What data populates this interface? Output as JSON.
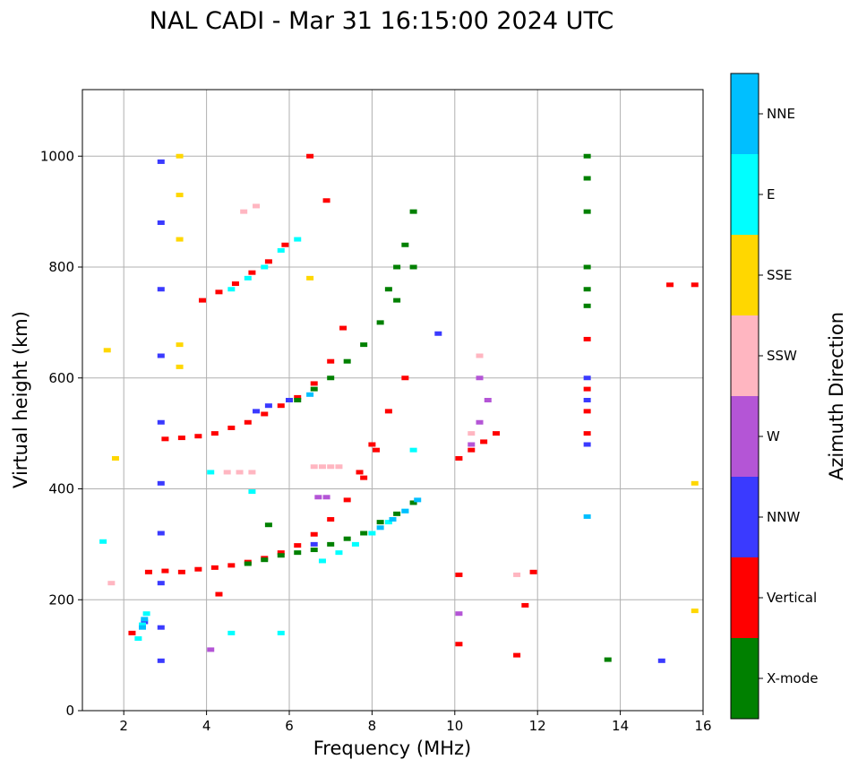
{
  "chart_data": {
    "type": "scatter",
    "title": "NAL CADI - Mar 31 16:15:00 2024 UTC",
    "xlabel": "Frequency (MHz)",
    "ylabel": "Virtual height (km)",
    "xlim": [
      1,
      16
    ],
    "ylim": [
      0,
      1120
    ],
    "xticks": [
      2,
      4,
      6,
      8,
      10,
      12,
      14,
      16
    ],
    "yticks": [
      0,
      200,
      400,
      600,
      800,
      1000
    ],
    "grid": true,
    "colorbar": {
      "label": "Azimuth Direction",
      "categories": [
        {
          "name": "X-mode",
          "color": "#008000"
        },
        {
          "name": "Vertical",
          "color": "#ff0000"
        },
        {
          "name": "NNW",
          "color": "#3a3aff"
        },
        {
          "name": "W",
          "color": "#b455d6"
        },
        {
          "name": "SSW",
          "color": "#ffb6c1"
        },
        {
          "name": "SSE",
          "color": "#ffd700"
        },
        {
          "name": "E",
          "color": "#00ffff"
        },
        {
          "name": "NNE",
          "color": "#00bfff"
        }
      ]
    },
    "series": [
      {
        "name": "Vertical",
        "traces": [
          {
            "f": [
              2.2,
              2.6,
              3.0,
              3.4,
              3.8,
              4.2,
              4.6,
              5.0,
              5.4,
              5.8,
              6.2,
              6.6,
              7.0,
              7.4,
              7.8,
              8.1
            ],
            "h": [
              140,
              250,
              252,
              250,
              255,
              258,
              262,
              268,
              275,
              285,
              298,
              318,
              345,
              380,
              420,
              470
            ]
          },
          {
            "f": [
              3.0,
              3.4,
              3.8,
              4.2,
              4.6,
              5.0,
              5.4,
              5.8,
              6.2,
              6.6,
              7.0,
              7.3
            ],
            "h": [
              490,
              492,
              495,
              500,
              510,
              520,
              535,
              550,
              565,
              590,
              630,
              690
            ]
          },
          {
            "f": [
              3.9,
              4.3,
              4.7,
              5.1,
              5.5,
              5.9
            ],
            "h": [
              740,
              755,
              770,
              790,
              810,
              840
            ]
          },
          {
            "f": [
              7.7,
              8.0,
              8.4,
              8.8
            ],
            "h": [
              430,
              480,
              540,
              600
            ]
          },
          {
            "f": [
              10.1,
              10.4,
              10.7,
              11.0
            ],
            "h": [
              455,
              470,
              485,
              500
            ]
          },
          {
            "f": [
              13.2,
              13.2,
              13.2,
              13.2
            ],
            "h": [
              500,
              540,
              580,
              670
            ]
          },
          {
            "f": [
              6.5,
              6.9
            ],
            "h": [
              1000,
              920
            ]
          },
          {
            "f": [
              15.2,
              15.8,
              11.7,
              11.9,
              10.1,
              10.1,
              11.5,
              4.3
            ],
            "h": [
              768,
              768,
              190,
              250,
              245,
              120,
              100,
              210
            ]
          }
        ]
      },
      {
        "name": "X-mode",
        "traces": [
          {
            "f": [
              5.0,
              5.4,
              5.8,
              6.2,
              6.6,
              7.0,
              7.4,
              7.8,
              8.2,
              8.6,
              9.0
            ],
            "h": [
              265,
              272,
              280,
              285,
              290,
              300,
              310,
              320,
              340,
              355,
              375
            ]
          },
          {
            "f": [
              6.2,
              6.6,
              7.0,
              7.4,
              7.8,
              8.2,
              8.6,
              9.0
            ],
            "h": [
              560,
              580,
              600,
              630,
              660,
              700,
              740,
              800
            ]
          },
          {
            "f": [
              8.4,
              8.6,
              8.8,
              9.0
            ],
            "h": [
              760,
              800,
              840,
              900
            ]
          },
          {
            "f": [
              13.2,
              13.2,
              13.2,
              13.2,
              13.2,
              13.2
            ],
            "h": [
              730,
              760,
              800,
              900,
              960,
              1000
            ]
          },
          {
            "f": [
              13.7,
              5.5
            ],
            "h": [
              92,
              335
            ]
          }
        ]
      },
      {
        "name": "NNW",
        "traces": [
          {
            "f": [
              2.9,
              2.9,
              2.9,
              2.9,
              2.9,
              2.9,
              2.9,
              2.9,
              2.9,
              2.9
            ],
            "h": [
              90,
              150,
              230,
              320,
              410,
              520,
              640,
              760,
              880,
              990
            ]
          },
          {
            "f": [
              13.2,
              13.2,
              13.2
            ],
            "h": [
              480,
              560,
              600
            ]
          },
          {
            "f": [
              5.2,
              5.5,
              6.0,
              6.6
            ],
            "h": [
              540,
              550,
              560,
              300
            ]
          },
          {
            "f": [
              15.0,
              9.6,
              2.5
            ],
            "h": [
              90,
              680,
              160
            ]
          }
        ]
      },
      {
        "name": "W",
        "traces": [
          {
            "f": [
              10.4,
              10.6,
              10.8,
              10.6
            ],
            "h": [
              480,
              520,
              560,
              600
            ]
          },
          {
            "f": [
              6.7,
              6.9,
              4.1,
              10.1
            ],
            "h": [
              385,
              385,
              110,
              175
            ]
          }
        ]
      },
      {
        "name": "SSW",
        "traces": [
          {
            "f": [
              6.6,
              6.8,
              7.0,
              7.2
            ],
            "h": [
              440,
              440,
              440,
              440
            ]
          },
          {
            "f": [
              4.5,
              4.8,
              5.1,
              4.9,
              5.2
            ],
            "h": [
              430,
              430,
              430,
              900,
              910
            ]
          },
          {
            "f": [
              10.4,
              10.6,
              11.5,
              1.7
            ],
            "h": [
              500,
              640,
              245,
              230
            ]
          }
        ]
      },
      {
        "name": "SSE",
        "traces": [
          {
            "f": [
              3.35,
              3.35,
              3.35,
              3.35,
              3.35
            ],
            "h": [
              620,
              660,
              850,
              930,
              1000
            ]
          },
          {
            "f": [
              15.8,
              15.8,
              6.5,
              1.8,
              1.6
            ],
            "h": [
              410,
              180,
              780,
              455,
              650
            ]
          }
        ]
      },
      {
        "name": "E",
        "traces": [
          {
            "f": [
              6.8,
              7.2,
              7.6,
              8.0,
              8.4,
              8.8,
              9.0
            ],
            "h": [
              270,
              285,
              300,
              320,
              340,
              360,
              470
            ]
          },
          {
            "f": [
              4.6,
              5.0,
              5.4,
              5.8,
              6.2
            ],
            "h": [
              760,
              780,
              800,
              830,
              850
            ]
          },
          {
            "f": [
              4.1,
              4.6,
              5.1,
              5.8
            ],
            "h": [
              430,
              140,
              395,
              140
            ]
          },
          {
            "f": [
              2.35,
              2.45,
              2.55,
              1.5
            ],
            "h": [
              130,
              155,
              175,
              305
            ]
          }
        ]
      },
      {
        "name": "NNE",
        "traces": [
          {
            "f": [
              8.2,
              8.5,
              8.8,
              9.1
            ],
            "h": [
              330,
              345,
              360,
              380
            ]
          },
          {
            "f": [
              2.45,
              2.5,
              6.5,
              13.2
            ],
            "h": [
              150,
              165,
              570,
              350
            ]
          }
        ]
      }
    ]
  }
}
